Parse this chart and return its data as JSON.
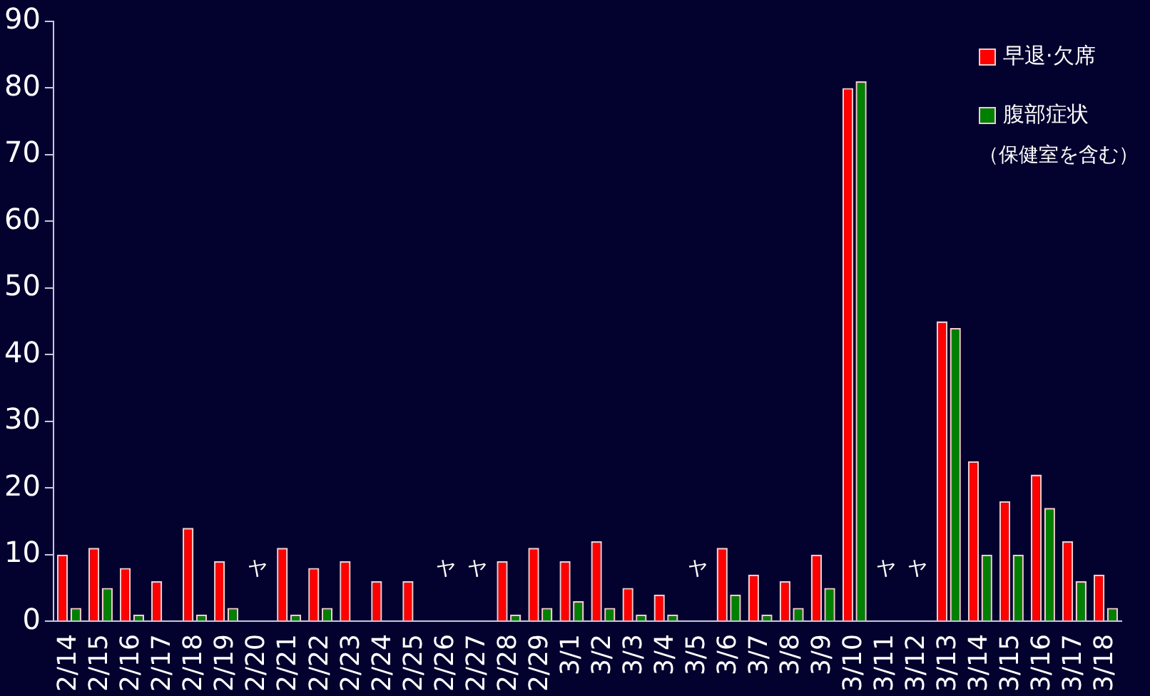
{
  "chart_data": {
    "type": "bar",
    "categories": [
      "2/14",
      "2/15",
      "2/16",
      "2/17",
      "2/18",
      "2/19",
      "2/20",
      "2/21",
      "2/22",
      "2/23",
      "2/24",
      "2/25",
      "2/26",
      "2/27",
      "2/28",
      "2/29",
      "3/1",
      "3/2",
      "3/3",
      "3/4",
      "3/5",
      "3/6",
      "3/7",
      "3/8",
      "3/9",
      "3/10",
      "3/11",
      "3/12",
      "3/13",
      "3/14",
      "3/15",
      "3/16",
      "3/17",
      "3/18"
    ],
    "series": [
      {
        "name": "早退·欠席",
        "color": "#ff0000",
        "values": [
          10,
          11,
          8,
          6,
          14,
          9,
          null,
          11,
          8,
          9,
          6,
          6,
          null,
          null,
          9,
          11,
          9,
          12,
          5,
          4,
          null,
          11,
          7,
          6,
          10,
          80,
          null,
          null,
          45,
          24,
          18,
          22,
          12,
          7
        ]
      },
      {
        "name": "腹部症状",
        "color": "#008000",
        "values": [
          2,
          5,
          1,
          0,
          1,
          2,
          null,
          1,
          2,
          0,
          0,
          0,
          null,
          null,
          1,
          2,
          3,
          2,
          1,
          1,
          null,
          4,
          1,
          2,
          5,
          81,
          null,
          null,
          44,
          10,
          10,
          17,
          6,
          2
        ]
      }
    ],
    "annotations": [
      "（保健室を含む）",
      "ヤ",
      "ヤ",
      "ヤ",
      "ヤ",
      "ヤ",
      "ヤ"
    ],
    "ylim": [
      0,
      90
    ],
    "yticks": [
      0,
      10,
      20,
      30,
      40,
      50,
      60,
      70,
      80,
      90
    ],
    "grid": false,
    "legend": "top right"
  }
}
